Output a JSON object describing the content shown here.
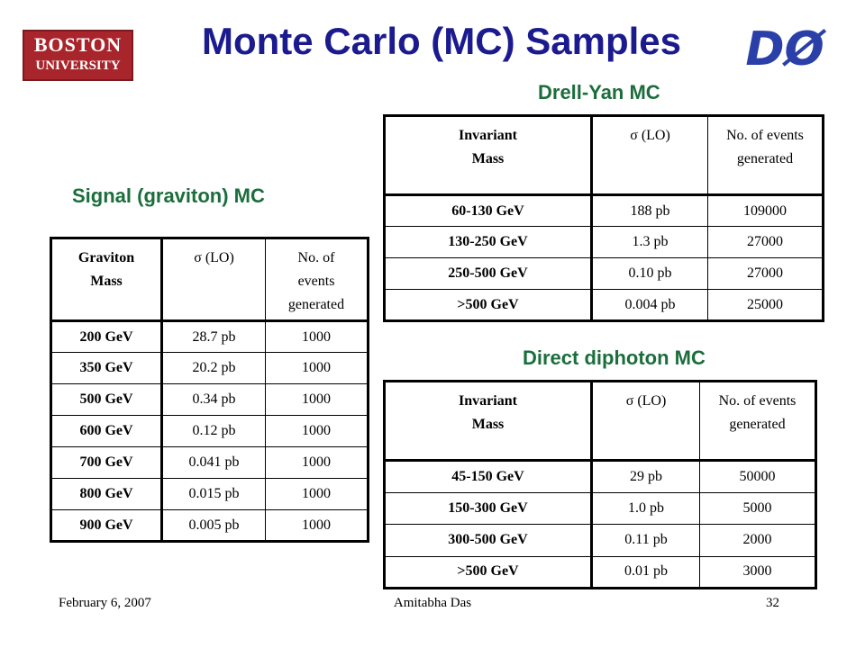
{
  "header": {
    "title": "Monte Carlo (MC) Samples",
    "logo_left": [
      "BOSTON",
      "UNIVERSITY"
    ],
    "logo_right": "DØ"
  },
  "tables": [
    {
      "title": "Signal (graviton) MC",
      "headers": [
        [
          "Graviton",
          "Mass"
        ],
        [
          "σ (LO)"
        ],
        [
          "No. of",
          "events",
          "generated"
        ]
      ],
      "rows": [
        [
          "200 GeV",
          "28.7 pb",
          "1000"
        ],
        [
          "350 GeV",
          "20.2 pb",
          "1000"
        ],
        [
          "500 GeV",
          "0.34 pb",
          "1000"
        ],
        [
          "600 GeV",
          "0.12 pb",
          "1000"
        ],
        [
          "700 GeV",
          "0.041 pb",
          "1000"
        ],
        [
          "800 GeV",
          "0.015 pb",
          "1000"
        ],
        [
          "900 GeV",
          "0.005 pb",
          "1000"
        ]
      ]
    },
    {
      "title": "Drell-Yan MC",
      "headers": [
        [
          "Invariant",
          "Mass"
        ],
        [
          "σ (LO)"
        ],
        [
          "No. of events",
          "generated"
        ]
      ],
      "rows": [
        [
          "60-130 GeV",
          "188 pb",
          "109000"
        ],
        [
          "130-250 GeV",
          "1.3 pb",
          "27000"
        ],
        [
          "250-500  GeV",
          "0.10 pb",
          "27000"
        ],
        [
          ">500 GeV",
          "0.004 pb",
          "25000"
        ]
      ]
    },
    {
      "title": "Direct diphoton MC",
      "headers": [
        [
          "Invariant",
          "Mass"
        ],
        [
          "σ (LO)"
        ],
        [
          "No. of events",
          "generated"
        ]
      ],
      "rows": [
        [
          "45-150 GeV",
          "29 pb",
          "50000"
        ],
        [
          "150-300 GeV",
          "1.0 pb",
          "5000"
        ],
        [
          "300-500  GeV",
          "0.11 pb",
          "2000"
        ],
        [
          ">500 GeV",
          "0.01 pb",
          "3000"
        ]
      ]
    }
  ],
  "footer": {
    "date": "February 6, 2007",
    "author": "Amitabha Das",
    "page": "32"
  }
}
